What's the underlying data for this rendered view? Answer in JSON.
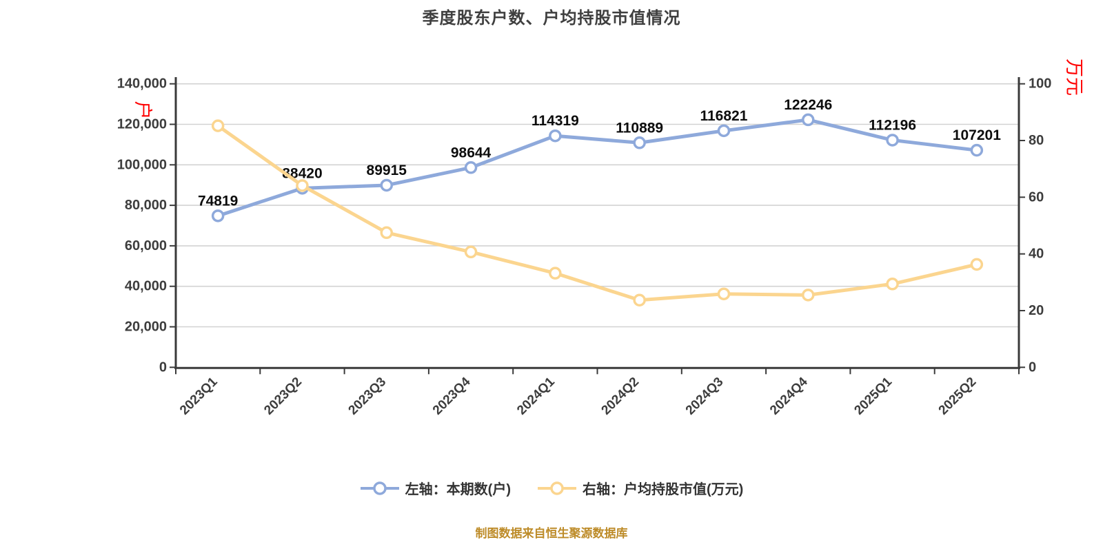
{
  "title": "季度股东户数、户均持股市值情况",
  "footer": "制图数据来自恒生聚源数据库",
  "legend": {
    "items": [
      {
        "label": "左轴：本期数(户)",
        "color": "#8ea9db"
      },
      {
        "label": "右轴：户均持股市值(万元)",
        "color": "#fbd58f"
      }
    ]
  },
  "chart_data": {
    "type": "line",
    "categories": [
      "2023Q1",
      "2023Q2",
      "2023Q3",
      "2023Q4",
      "2024Q1",
      "2024Q2",
      "2024Q3",
      "2024Q4",
      "2025Q1",
      "2025Q2"
    ],
    "series": [
      {
        "name": "左轴：本期数(户)",
        "axis": "left",
        "color": "#8ea9db",
        "show_labels": true,
        "values": [
          74819,
          88420,
          89915,
          98644,
          114319,
          110889,
          116821,
          122246,
          112196,
          107201
        ]
      },
      {
        "name": "右轴：户均持股市值(万元)",
        "axis": "right",
        "color": "#fbd58f",
        "show_labels": false,
        "values": [
          85.2,
          64.1,
          47.5,
          40.7,
          33.2,
          23.7,
          25.9,
          25.5,
          29.4,
          36.3
        ]
      }
    ],
    "left_axis": {
      "min": 0,
      "max": 140000,
      "step": 20000,
      "unit": "户",
      "unit_color": "#ff0000"
    },
    "right_axis": {
      "min": 0,
      "max": 100,
      "step": 20,
      "unit": "万元",
      "unit_color": "#ff0000"
    },
    "grid": true,
    "legend_position": "bottom",
    "styles": {
      "grid_color": "#d2d2d2",
      "axis_color": "#3a3a3a",
      "tick_label_color": "#3d3d3d",
      "data_label_color": "#0d0d0d"
    }
  }
}
